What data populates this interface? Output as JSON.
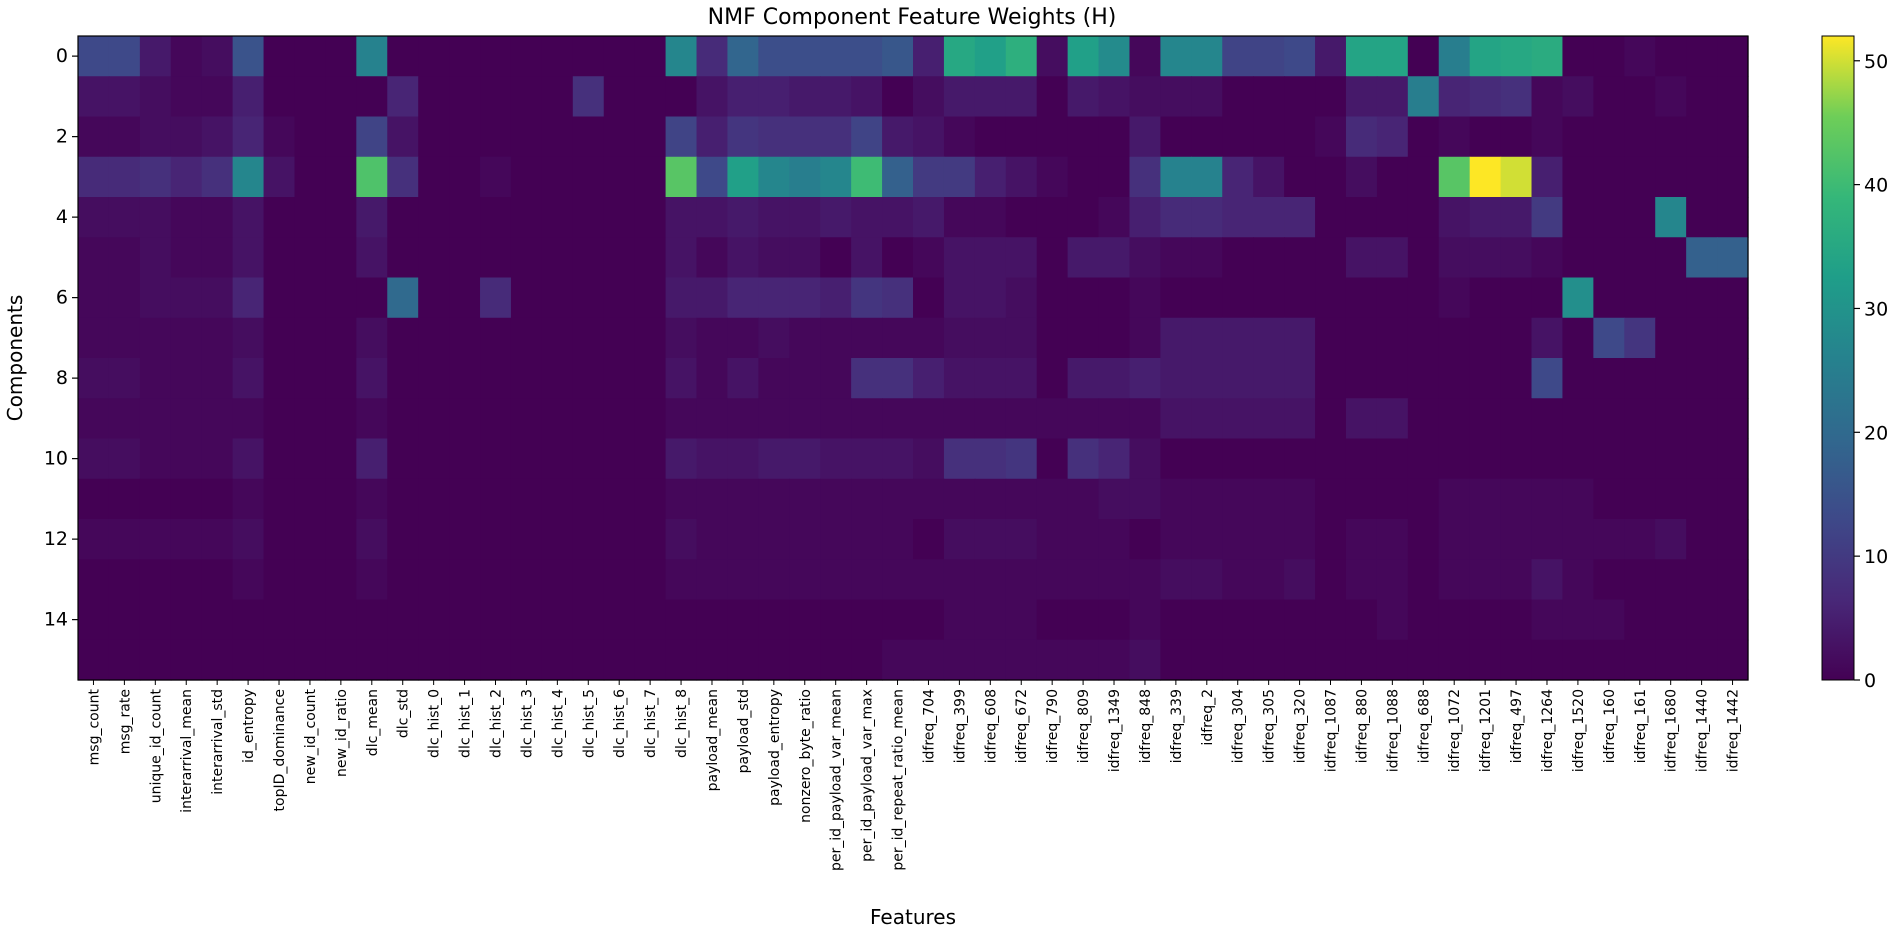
{
  "chart_data": {
    "type": "heatmap",
    "title": "NMF Component Feature Weights (H)",
    "xlabel": "Features",
    "ylabel": "Components",
    "colormap": "viridis",
    "vmin": 0,
    "vmax": 52,
    "colorbar_ticks": [
      0,
      10,
      20,
      30,
      40,
      50
    ],
    "y_ticks": [
      0,
      2,
      4,
      6,
      8,
      10,
      12,
      14
    ],
    "components": [
      0,
      1,
      2,
      3,
      4,
      5,
      6,
      7,
      8,
      9,
      10,
      11,
      12,
      13,
      14,
      15
    ],
    "features": [
      "msg_count",
      "msg_rate",
      "unique_id_count",
      "interarrival_mean",
      "interarrival_std",
      "id_entropy",
      "topID_dominance",
      "new_id_count",
      "new_id_ratio",
      "dlc_mean",
      "dlc_std",
      "dlc_hist_0",
      "dlc_hist_1",
      "dlc_hist_2",
      "dlc_hist_3",
      "dlc_hist_4",
      "dlc_hist_5",
      "dlc_hist_6",
      "dlc_hist_7",
      "dlc_hist_8",
      "payload_mean",
      "payload_std",
      "payload_entropy",
      "nonzero_byte_ratio",
      "per_id_payload_var_mean",
      "per_id_payload_var_max",
      "per_id_repeat_ratio_mean",
      "idfreq_704",
      "idfreq_399",
      "idfreq_608",
      "idfreq_672",
      "idfreq_790",
      "idfreq_809",
      "idfreq_1349",
      "idfreq_848",
      "idfreq_339",
      "idfreq_2",
      "idfreq_304",
      "idfreq_305",
      "idfreq_320",
      "idfreq_1087",
      "idfreq_880",
      "idfreq_1088",
      "idfreq_688",
      "idfreq_1072",
      "idfreq_1201",
      "idfreq_497",
      "idfreq_1264",
      "idfreq_1520",
      "idfreq_160",
      "idfreq_161",
      "idfreq_1680",
      "idfreq_1440",
      "idfreq_1442"
    ],
    "values": [
      [
        13,
        13,
        4,
        1,
        2,
        15,
        0,
        0,
        0,
        26,
        0,
        0,
        0,
        0,
        0,
        0,
        0,
        0,
        0,
        27,
        7,
        19,
        14,
        14,
        14,
        14,
        16,
        5,
        35,
        33,
        37,
        2,
        33,
        28,
        1,
        27,
        27,
        12,
        12,
        13,
        4,
        34,
        34,
        0,
        25,
        34,
        35,
        36,
        0,
        0,
        1,
        0,
        0,
        0
      ],
      [
        3,
        3,
        2,
        1,
        1,
        5,
        0,
        0,
        0,
        0,
        6,
        0,
        0,
        0,
        0,
        0,
        8,
        0,
        0,
        0,
        3,
        5,
        5,
        4,
        4,
        3,
        0,
        2,
        4,
        4,
        4,
        0,
        4,
        3,
        2,
        2,
        2,
        0,
        0,
        0,
        0,
        4,
        4,
        25,
        6,
        7,
        8,
        1,
        2,
        0,
        0,
        1,
        0,
        0
      ],
      [
        1,
        1,
        2,
        2,
        3,
        6,
        1,
        0,
        0,
        12,
        3,
        0,
        0,
        0,
        0,
        0,
        0,
        0,
        0,
        12,
        5,
        9,
        8,
        8,
        8,
        12,
        4,
        3,
        1,
        0,
        0,
        0,
        0,
        0,
        4,
        0,
        0,
        0,
        0,
        0,
        1,
        7,
        6,
        0,
        1,
        0,
        0,
        1,
        0,
        0,
        0,
        0,
        0,
        0
      ],
      [
        7,
        7,
        8,
        6,
        8,
        27,
        3,
        0,
        0,
        42,
        8,
        0,
        0,
        1,
        0,
        0,
        0,
        0,
        0,
        43,
        13,
        33,
        27,
        25,
        27,
        40,
        18,
        10,
        10,
        5,
        3,
        1,
        0,
        0,
        8,
        26,
        26,
        6,
        3,
        0,
        0,
        2,
        0,
        0,
        43,
        52,
        50,
        5,
        0,
        0,
        0,
        0,
        0,
        0
      ],
      [
        2,
        2,
        2,
        1,
        1,
        3,
        0,
        0,
        0,
        4,
        0,
        0,
        0,
        0,
        0,
        0,
        0,
        0,
        0,
        3,
        3,
        4,
        3,
        3,
        4,
        3,
        3,
        4,
        1,
        1,
        0,
        0,
        0,
        1,
        5,
        7,
        7,
        6,
        6,
        6,
        0,
        0,
        0,
        0,
        3,
        4,
        4,
        10,
        0,
        0,
        0,
        27,
        0,
        0
      ],
      [
        1,
        1,
        2,
        1,
        1,
        3,
        0,
        0,
        0,
        3,
        0,
        0,
        0,
        0,
        0,
        0,
        0,
        0,
        0,
        3,
        1,
        3,
        2,
        2,
        0,
        3,
        0,
        1,
        3,
        3,
        3,
        0,
        4,
        4,
        2,
        1,
        1,
        0,
        0,
        0,
        0,
        3,
        3,
        0,
        2,
        2,
        2,
        1,
        0,
        0,
        0,
        0,
        18,
        18
      ],
      [
        1,
        1,
        2,
        2,
        2,
        6,
        0,
        0,
        0,
        0,
        20,
        0,
        0,
        7,
        0,
        0,
        0,
        0,
        0,
        4,
        4,
        6,
        6,
        6,
        5,
        9,
        8,
        0,
        3,
        3,
        2,
        0,
        0,
        0,
        1,
        0,
        0,
        0,
        0,
        0,
        0,
        0,
        0,
        0,
        1,
        0,
        0,
        0,
        29,
        0,
        0,
        0,
        0,
        0
      ],
      [
        1,
        1,
        1,
        1,
        1,
        2,
        0,
        0,
        0,
        2,
        0,
        0,
        0,
        0,
        0,
        0,
        0,
        0,
        0,
        2,
        1,
        1,
        2,
        1,
        1,
        1,
        1,
        1,
        2,
        2,
        2,
        0,
        0,
        0,
        1,
        4,
        4,
        4,
        4,
        4,
        0,
        0,
        0,
        0,
        0,
        0,
        0,
        3,
        0,
        13,
        9,
        0,
        0,
        0
      ],
      [
        2,
        2,
        1,
        1,
        1,
        3,
        0,
        0,
        0,
        3,
        0,
        0,
        0,
        0,
        0,
        0,
        0,
        0,
        0,
        3,
        1,
        3,
        1,
        1,
        1,
        8,
        8,
        5,
        3,
        3,
        3,
        0,
        4,
        4,
        5,
        4,
        4,
        4,
        4,
        4,
        0,
        0,
        0,
        0,
        0,
        0,
        0,
        13,
        0,
        0,
        0,
        0,
        0,
        0
      ],
      [
        1,
        1,
        1,
        1,
        1,
        1,
        0,
        0,
        0,
        1,
        0,
        0,
        0,
        0,
        0,
        0,
        0,
        0,
        0,
        1,
        1,
        1,
        1,
        1,
        1,
        1,
        1,
        1,
        1,
        1,
        1,
        1,
        1,
        1,
        1,
        3,
        3,
        3,
        3,
        3,
        0,
        3,
        3,
        0,
        0,
        0,
        0,
        0,
        0,
        0,
        0,
        0,
        0,
        0
      ],
      [
        2,
        2,
        1,
        1,
        1,
        3,
        0,
        0,
        0,
        5,
        0,
        0,
        0,
        0,
        0,
        0,
        0,
        0,
        0,
        4,
        3,
        3,
        4,
        4,
        3,
        3,
        3,
        2,
        8,
        8,
        9,
        0,
        8,
        6,
        2,
        0,
        0,
        0,
        0,
        0,
        0,
        0,
        0,
        0,
        0,
        0,
        0,
        0,
        0,
        0,
        0,
        0,
        0,
        0
      ],
      [
        0,
        0,
        0,
        0,
        0,
        1,
        0,
        0,
        0,
        1,
        0,
        0,
        0,
        0,
        0,
        0,
        0,
        0,
        0,
        1,
        1,
        1,
        1,
        1,
        1,
        1,
        1,
        1,
        1,
        1,
        1,
        1,
        1,
        2,
        2,
        1,
        1,
        1,
        1,
        1,
        0,
        0,
        0,
        0,
        1,
        1,
        1,
        1,
        1,
        0,
        0,
        0,
        0,
        0
      ],
      [
        1,
        1,
        1,
        1,
        1,
        2,
        0,
        0,
        0,
        2,
        0,
        0,
        0,
        0,
        0,
        0,
        0,
        0,
        0,
        2,
        1,
        1,
        1,
        1,
        1,
        1,
        1,
        0,
        2,
        2,
        2,
        1,
        1,
        1,
        0,
        1,
        1,
        1,
        1,
        1,
        0,
        1,
        1,
        0,
        1,
        1,
        1,
        1,
        1,
        1,
        1,
        2,
        0,
        0
      ],
      [
        0,
        0,
        0,
        0,
        0,
        1,
        0,
        0,
        0,
        1,
        0,
        0,
        0,
        0,
        0,
        0,
        0,
        0,
        0,
        1,
        1,
        1,
        1,
        1,
        1,
        1,
        1,
        1,
        1,
        1,
        1,
        1,
        1,
        1,
        1,
        2,
        2,
        1,
        1,
        2,
        0,
        1,
        1,
        0,
        1,
        1,
        1,
        3,
        1,
        0,
        0,
        0,
        0,
        0
      ],
      [
        0,
        0,
        0,
        0,
        0,
        0,
        0,
        0,
        0,
        0,
        0,
        0,
        0,
        0,
        0,
        0,
        0,
        0,
        0,
        0,
        0,
        0,
        0,
        0,
        0,
        0,
        0,
        0,
        1,
        1,
        1,
        0,
        0,
        0,
        1,
        0,
        0,
        0,
        0,
        0,
        0,
        0,
        1,
        0,
        0,
        0,
        0,
        1,
        1,
        1,
        0,
        0,
        0,
        0
      ],
      [
        0,
        0,
        0,
        0,
        0,
        0,
        0,
        0,
        0,
        0,
        0,
        0,
        0,
        0,
        0,
        0,
        0,
        0,
        0,
        0,
        0,
        0,
        0,
        0,
        0,
        0,
        1,
        1,
        1,
        1,
        1,
        1,
        1,
        1,
        2,
        0,
        0,
        0,
        0,
        0,
        0,
        0,
        0,
        0,
        0,
        0,
        0,
        0,
        0,
        0,
        0,
        0,
        0,
        0
      ]
    ]
  }
}
